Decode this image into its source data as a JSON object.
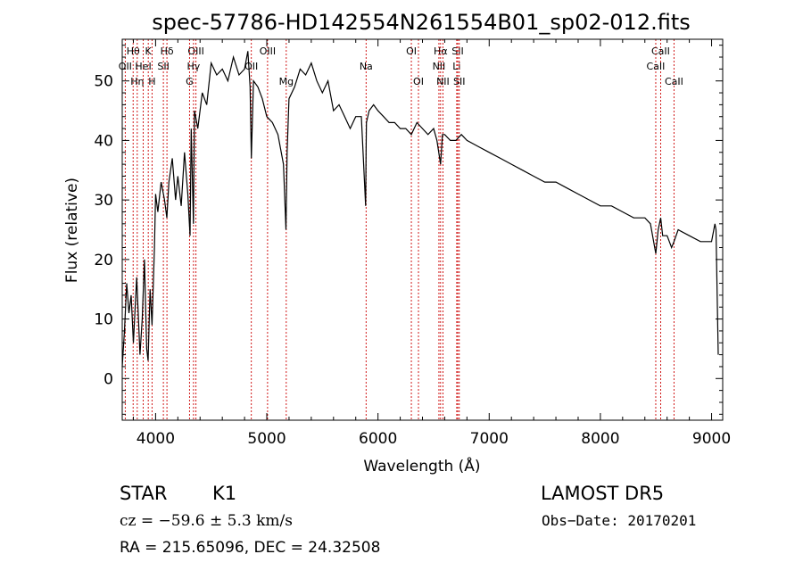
{
  "chart_data": {
    "type": "line",
    "title": "spec-57786-HD142554N261554B01_sp02-012.fits",
    "xlabel": "Wavelength (Å)",
    "ylabel": "Flux (relative)",
    "xlim": [
      3700,
      9100
    ],
    "ylim": [
      -7,
      57
    ],
    "xticks": [
      4000,
      5000,
      6000,
      7000,
      8000,
      9000
    ],
    "yticks": [
      0,
      10,
      20,
      30,
      40,
      50
    ],
    "grid": false,
    "series": [
      {
        "x": [
          3700,
          3720,
          3740,
          3760,
          3780,
          3800,
          3830,
          3860,
          3880,
          3900,
          3920,
          3933,
          3950,
          3968,
          3990,
          4000,
          4020,
          4050,
          4080,
          4101,
          4120,
          4150,
          4180,
          4200,
          4230,
          4260,
          4290,
          4310,
          4320,
          4340,
          4350,
          4380,
          4420,
          4460,
          4500,
          4550,
          4600,
          4650,
          4700,
          4750,
          4800,
          4830,
          4850,
          4861,
          4880,
          4920,
          4960,
          5000,
          5050,
          5100,
          5150,
          5172,
          5183,
          5200,
          5250,
          5300,
          5350,
          5400,
          5450,
          5500,
          5550,
          5600,
          5650,
          5700,
          5750,
          5800,
          5850,
          5889,
          5893,
          5896,
          5920,
          5960,
          6000,
          6050,
          6100,
          6150,
          6200,
          6250,
          6300,
          6350,
          6400,
          6450,
          6500,
          6530,
          6563,
          6580,
          6600,
          6650,
          6700,
          6750,
          6800,
          6900,
          7000,
          7100,
          7200,
          7300,
          7400,
          7500,
          7600,
          7700,
          7800,
          7900,
          8000,
          8100,
          8200,
          8300,
          8400,
          8450,
          8498,
          8520,
          8542,
          8560,
          8600,
          8640,
          8662,
          8700,
          8800,
          8900,
          9000,
          9030,
          9040,
          9060
        ],
        "y": [
          2,
          8,
          16,
          11,
          14,
          6,
          17,
          4,
          10,
          20,
          5,
          3,
          15,
          9,
          22,
          31,
          28,
          33,
          30,
          27,
          33,
          37,
          30,
          34,
          29,
          38,
          31,
          24,
          42,
          26,
          45,
          42,
          48,
          46,
          53,
          51,
          52,
          50,
          54,
          51,
          52,
          55,
          49,
          37,
          50,
          49,
          47,
          44,
          43,
          41,
          36,
          25,
          38,
          47,
          49,
          52,
          51,
          53,
          50,
          48,
          50,
          45,
          46,
          44,
          42,
          44,
          44,
          29,
          38,
          43,
          45,
          46,
          45,
          44,
          43,
          43,
          42,
          42,
          41,
          43,
          42,
          41,
          42,
          40,
          36,
          41,
          41,
          40,
          40,
          41,
          40,
          39,
          38,
          37,
          36,
          35,
          34,
          33,
          33,
          32,
          31,
          30,
          29,
          29,
          28,
          27,
          27,
          26,
          21,
          25,
          27,
          24,
          24,
          22,
          23,
          25,
          24,
          23,
          23,
          26,
          25,
          4
        ]
      }
    ],
    "lines": [
      {
        "label": "Hθ",
        "x": 3798,
        "row": 1
      },
      {
        "label": "OII",
        "x": 3727,
        "row": 2
      },
      {
        "label": "Hη",
        "x": 3835,
        "row": 3
      },
      {
        "label": "K",
        "x": 3934,
        "row": 1
      },
      {
        "label": "HeI",
        "x": 3889,
        "row": 2
      },
      {
        "label": "H",
        "x": 3968,
        "row": 3
      },
      {
        "label": "Hδ",
        "x": 4102,
        "row": 1
      },
      {
        "label": "SII",
        "x": 4070,
        "row": 2
      },
      {
        "label": "OIII",
        "x": 4363,
        "row": 1
      },
      {
        "label": "Hγ",
        "x": 4341,
        "row": 2
      },
      {
        "label": "G",
        "x": 4305,
        "row": 3
      },
      {
        "label": "OIII",
        "x": 5007,
        "row": 1
      },
      {
        "label": "OII",
        "x": 4861,
        "row": 2
      },
      {
        "label": "Mg",
        "x": 5175,
        "row": 3
      },
      {
        "label": "Na",
        "x": 5893,
        "row": 2
      },
      {
        "label": "OI",
        "x": 6300,
        "row": 1
      },
      {
        "label": "OI",
        "x": 6364,
        "row": 3
      },
      {
        "label": "Hα",
        "x": 6563,
        "row": 1
      },
      {
        "label": "NII",
        "x": 6548,
        "row": 2
      },
      {
        "label": "NII",
        "x": 6584,
        "row": 3
      },
      {
        "label": "SII",
        "x": 6717,
        "row": 1
      },
      {
        "label": "Li",
        "x": 6708,
        "row": 2
      },
      {
        "label": "SII",
        "x": 6731,
        "row": 3
      },
      {
        "label": "CaII",
        "x": 8542,
        "row": 1
      },
      {
        "label": "CaII",
        "x": 8498,
        "row": 2
      },
      {
        "label": "CaII",
        "x": 8662,
        "row": 3
      }
    ],
    "line_marker_color": "#cc0000"
  },
  "info": {
    "class": "STAR",
    "subclass": "K1",
    "survey": "LAMOST DR5",
    "cz": "cz = −59.6 ± 5.3 km/s",
    "obs_date": "Obs−Date: 20170201",
    "coords": "RA = 215.65096, DEC =  24.32508"
  }
}
